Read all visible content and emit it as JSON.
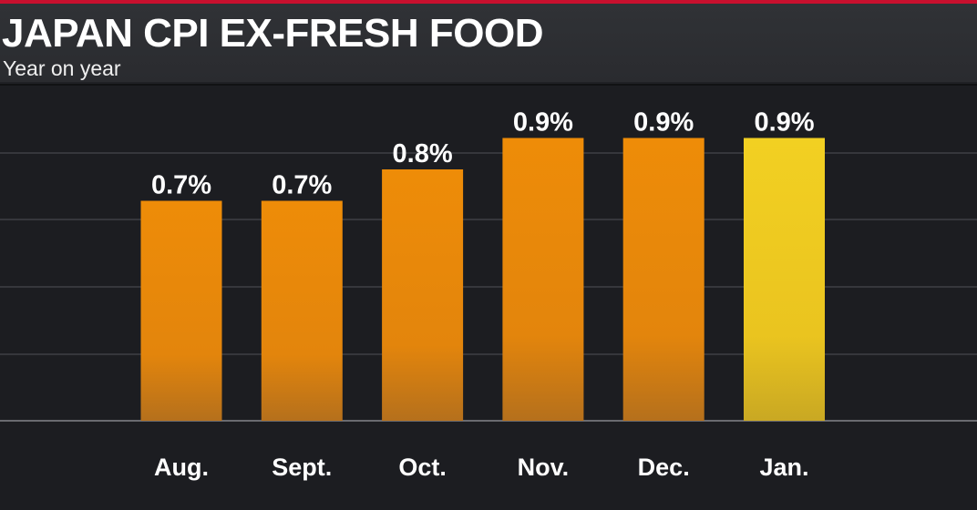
{
  "header": {
    "title": "JAPAN CPI EX-FRESH FOOD",
    "subtitle": "Year on year"
  },
  "colors": {
    "background": "#1c1d21",
    "header_background": "#2e2f33",
    "top_accent": "#c8102e",
    "bar": "#e8870a",
    "bar_highlight": "#f0cc22",
    "gridline": "#3f4046",
    "text": "#ffffff"
  },
  "chart_data": {
    "type": "bar",
    "title": "JAPAN CPI EX-FRESH FOOD",
    "subtitle": "Year on year",
    "categories": [
      "Aug.",
      "Sept.",
      "Oct.",
      "Nov.",
      "Dec.",
      "Jan."
    ],
    "values": [
      0.7,
      0.7,
      0.8,
      0.9,
      0.9,
      0.9
    ],
    "data_labels": [
      "0.7%",
      "0.7%",
      "0.8%",
      "0.9%",
      "0.9%",
      "0.9%"
    ],
    "highlighted_category": "Jan.",
    "unit": "%",
    "xlabel": "",
    "ylabel": "",
    "grid": true,
    "legend": "none"
  }
}
